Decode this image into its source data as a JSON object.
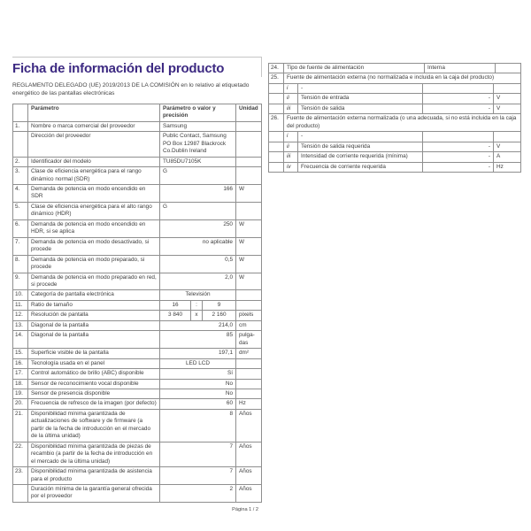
{
  "page": {
    "title": "Ficha de información del producto",
    "subtitle": "REGLAMENTO DELEGADO (UE) 2019/2013 DE LA COMISIÓN en lo relativo al etiquetado energético de las pantallas electrónicas",
    "footer": "Página 1 / 2",
    "accent_color": "#3d2a82",
    "border_color": "#8f8f8f",
    "text_color": "#3d3d3d"
  },
  "left_table": {
    "headers": {
      "param": "Parámetro",
      "value": "Parámetro o valor y precisión",
      "unit": "Unidad"
    },
    "rows": [
      {
        "num": "1.",
        "label": "Nombre o marca comercial del proveedor",
        "value": "Samsung",
        "unit": "",
        "align": "left"
      },
      {
        "num": "",
        "label": "Dirección del proveedor",
        "value": "Public Contact, Samsung\nPO Box 12987 Blackrock\nCo.Dublin Ireland",
        "unit": "",
        "align": "left"
      },
      {
        "num": "2.",
        "label": "Identificador del modelo",
        "value": "TU85DU7105K",
        "unit": "",
        "align": "left"
      },
      {
        "num": "3.",
        "label": "Clase de eficiencia energética para el rango dinámico normal (SDR)",
        "value": "G",
        "unit": "",
        "align": "left"
      },
      {
        "num": "4.",
        "label": "Demanda de potencia en modo encendido en SDR",
        "value": "166",
        "unit": "W",
        "align": "right"
      },
      {
        "num": "5.",
        "label": "Clase de eficiencia energética para el alto rango dinámico (HDR)",
        "value": "G",
        "unit": "",
        "align": "left"
      },
      {
        "num": "6.",
        "label": "Demanda de potencia en modo encendido en HDR, si se aplica",
        "value": "250",
        "unit": "W",
        "align": "right"
      },
      {
        "num": "7.",
        "label": "Demanda de potencia en modo desactivado, si procede",
        "value": "no aplicable",
        "unit": "W",
        "align": "right"
      },
      {
        "num": "8.",
        "label": "Demanda de potencia en modo preparado, si procede",
        "value": "0,5",
        "unit": "W",
        "align": "right"
      },
      {
        "num": "9.",
        "label": "Demanda de potencia en modo preparado en red, si procede",
        "value": "2,0",
        "unit": "W",
        "align": "right"
      },
      {
        "num": "10.",
        "label": "Categoría de pantalla electrónica",
        "value": "Televisión",
        "unit": "",
        "align": "center"
      },
      {
        "num": "11.",
        "label": "Ratio de tamaño",
        "split": [
          "16",
          ":",
          "9"
        ],
        "unit": ""
      },
      {
        "num": "12.",
        "label": "Resolución de pantalla",
        "split": [
          "3 840",
          "x",
          "2 160"
        ],
        "unit": "pixels"
      },
      {
        "num": "13.",
        "label": "Diagonal de la pantalla",
        "value": "214,0",
        "unit": "cm",
        "align": "right"
      },
      {
        "num": "14.",
        "label": "Diagonal de la pantalla",
        "value": "85",
        "unit": "pulga-das",
        "align": "right"
      },
      {
        "num": "15.",
        "label": "Superficie visible de la pantalla",
        "value": "197,1",
        "unit": "dm²",
        "align": "right"
      },
      {
        "num": "16.",
        "label": "Tecnología usada en el panel",
        "value": "LED LCD",
        "unit": "",
        "align": "center"
      },
      {
        "num": "17.",
        "label": "Control automático de brillo (ABC) disponible",
        "value": "Sí",
        "unit": "",
        "align": "right"
      },
      {
        "num": "18.",
        "label": "Sensor de reconocimiento vocal disponible",
        "value": "No",
        "unit": "",
        "align": "right"
      },
      {
        "num": "19.",
        "label": "Sensor de presencia disponible",
        "value": "No",
        "unit": "",
        "align": "right"
      },
      {
        "num": "20.",
        "label": "Frecuencia de refresco de la imagen (por defecto)",
        "value": "60",
        "unit": "Hz",
        "align": "right"
      },
      {
        "num": "21.",
        "label": "Disponibilidad mínima garantizada de actualizaciones de software y de firmware (a partir de la fecha de introducción en el mercado de la última unidad)",
        "value": "8",
        "unit": "Años",
        "align": "right"
      },
      {
        "num": "22.",
        "label": "Disponibilidad mínima garantizada de piezas de recambio (a partir de la fecha de introducción en el mercado de la última unidad)",
        "value": "7",
        "unit": "Años",
        "align": "right"
      },
      {
        "num": "23.",
        "label": "Disponibilidad mínima garantizada de asistencia para el producto",
        "value": "7",
        "unit": "Años",
        "align": "right"
      },
      {
        "num": "",
        "label": "Duración mínima de la garantía general ofrecida por el proveedor",
        "value": "2",
        "unit": "Años",
        "align": "right"
      }
    ]
  },
  "right_table": {
    "rows": [
      {
        "type": "main",
        "num": "24.",
        "label": "Tipo de fuente de alimentación",
        "value": "Interna",
        "unit": ""
      },
      {
        "type": "span",
        "num": "25.",
        "label": "Fuente de alimentación externa (no normalizada e incluida en la caja del producto)"
      },
      {
        "type": "sub",
        "roman": "i",
        "label": "-",
        "value": "",
        "unit": ""
      },
      {
        "type": "sub",
        "roman": "ii",
        "label": "Tensión de entrada",
        "value": "-",
        "unit": "V"
      },
      {
        "type": "sub",
        "roman": "iii",
        "label": "Tensión de salida",
        "value": "-",
        "unit": "V"
      },
      {
        "type": "span",
        "num": "26.",
        "label": "Fuente de alimentación externa normalizada (o una adecuada, si no está incluida en la caja del producto)"
      },
      {
        "type": "sub",
        "roman": "i",
        "label": "-",
        "value": "",
        "unit": ""
      },
      {
        "type": "sub",
        "roman": "ii",
        "label": "Tensión de salida requerida",
        "value": "-",
        "unit": "V"
      },
      {
        "type": "sub",
        "roman": "iii",
        "label": "Intensidad de corriente requerida (mínima)",
        "value": "-",
        "unit": "A"
      },
      {
        "type": "sub",
        "roman": "iv",
        "label": "Frecuencia de corriente requerida",
        "value": "-",
        "unit": "Hz"
      }
    ]
  }
}
